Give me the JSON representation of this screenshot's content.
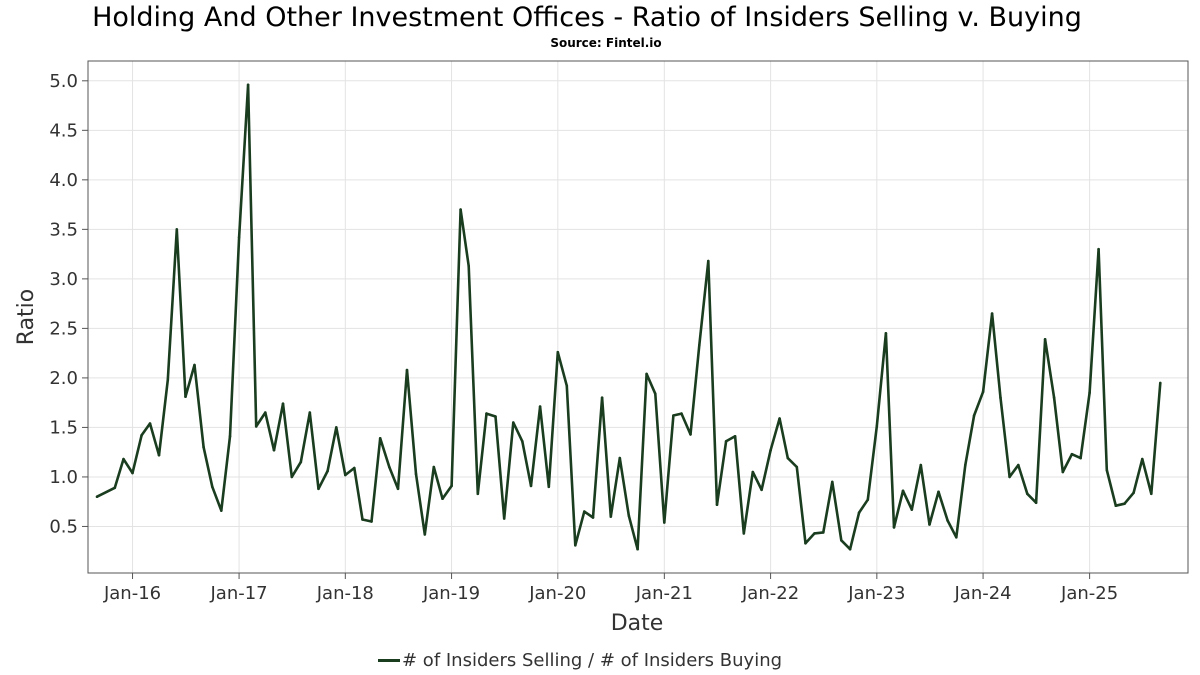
{
  "chart_data": {
    "type": "line",
    "title": "Holding And Other Investment Offices - Ratio of Insiders Selling v. Buying",
    "subtitle": "Source: Fintel.io",
    "xlabel": "Date",
    "ylabel": "Ratio",
    "x_ticks": [
      "Jan-16",
      "Jan-17",
      "Jan-18",
      "Jan-19",
      "Jan-20",
      "Jan-21",
      "Jan-22",
      "Jan-23",
      "Jan-24",
      "Jan-25"
    ],
    "y_ticks": [
      "0.5",
      "1.0",
      "1.5",
      "2.0",
      "2.5",
      "3.0",
      "3.5",
      "4.0",
      "4.5",
      "5.0"
    ],
    "xlim": [
      "2015-08-01",
      "2025-12-05"
    ],
    "ylim": [
      0.03,
      5.2
    ],
    "grid": true,
    "legend_position": "bottom-center",
    "series": [
      {
        "name": "# of Insiders Selling / # of Insiders Buying",
        "color": "#1a3d1f",
        "points": [
          [
            "2015-09-01",
            0.8
          ],
          [
            "2015-11-01",
            0.89
          ],
          [
            "2015-12-01",
            1.18
          ],
          [
            "2016-01-01",
            1.04
          ],
          [
            "2016-02-01",
            1.42
          ],
          [
            "2016-03-01",
            1.54
          ],
          [
            "2016-04-01",
            1.22
          ],
          [
            "2016-05-01",
            1.98
          ],
          [
            "2016-06-01",
            3.5
          ],
          [
            "2016-07-01",
            1.81
          ],
          [
            "2016-08-01",
            2.13
          ],
          [
            "2016-09-01",
            1.3
          ],
          [
            "2016-10-01",
            0.9
          ],
          [
            "2016-11-01",
            0.66
          ],
          [
            "2016-12-01",
            1.41
          ],
          [
            "2017-01-01",
            3.42
          ],
          [
            "2017-02-01",
            4.96
          ],
          [
            "2017-03-01",
            1.51
          ],
          [
            "2017-04-01",
            1.65
          ],
          [
            "2017-05-01",
            1.27
          ],
          [
            "2017-06-01",
            1.74
          ],
          [
            "2017-07-01",
            1.0
          ],
          [
            "2017-08-01",
            1.15
          ],
          [
            "2017-09-01",
            1.65
          ],
          [
            "2017-10-01",
            0.88
          ],
          [
            "2017-11-01",
            1.06
          ],
          [
            "2017-12-01",
            1.5
          ],
          [
            "2018-01-01",
            1.02
          ],
          [
            "2018-02-01",
            1.09
          ],
          [
            "2018-03-01",
            0.57
          ],
          [
            "2018-04-01",
            0.55
          ],
          [
            "2018-05-01",
            1.39
          ],
          [
            "2018-06-01",
            1.1
          ],
          [
            "2018-07-01",
            0.88
          ],
          [
            "2018-08-01",
            2.08
          ],
          [
            "2018-09-01",
            1.03
          ],
          [
            "2018-10-01",
            0.42
          ],
          [
            "2018-11-01",
            1.1
          ],
          [
            "2018-12-01",
            0.78
          ],
          [
            "2019-01-01",
            0.91
          ],
          [
            "2019-02-01",
            3.7
          ],
          [
            "2019-03-01",
            3.13
          ],
          [
            "2019-04-01",
            0.83
          ],
          [
            "2019-05-01",
            1.64
          ],
          [
            "2019-06-01",
            1.61
          ],
          [
            "2019-07-01",
            0.58
          ],
          [
            "2019-08-01",
            1.55
          ],
          [
            "2019-09-01",
            1.36
          ],
          [
            "2019-10-01",
            0.91
          ],
          [
            "2019-11-01",
            1.71
          ],
          [
            "2019-12-01",
            0.9
          ],
          [
            "2020-01-01",
            2.26
          ],
          [
            "2020-02-01",
            1.92
          ],
          [
            "2020-03-01",
            0.31
          ],
          [
            "2020-04-01",
            0.65
          ],
          [
            "2020-05-01",
            0.59
          ],
          [
            "2020-06-01",
            1.8
          ],
          [
            "2020-07-01",
            0.6
          ],
          [
            "2020-08-01",
            1.19
          ],
          [
            "2020-09-01",
            0.61
          ],
          [
            "2020-10-01",
            0.27
          ],
          [
            "2020-11-01",
            2.04
          ],
          [
            "2020-12-01",
            1.84
          ],
          [
            "2021-01-01",
            0.54
          ],
          [
            "2021-02-01",
            1.62
          ],
          [
            "2021-03-01",
            1.64
          ],
          [
            "2021-04-01",
            1.43
          ],
          [
            "2021-05-01",
            2.33
          ],
          [
            "2021-06-01",
            3.18
          ],
          [
            "2021-07-01",
            0.72
          ],
          [
            "2021-08-01",
            1.36
          ],
          [
            "2021-09-01",
            1.41
          ],
          [
            "2021-10-01",
            0.43
          ],
          [
            "2021-11-01",
            1.05
          ],
          [
            "2021-12-01",
            0.87
          ],
          [
            "2022-01-01",
            1.27
          ],
          [
            "2022-02-01",
            1.59
          ],
          [
            "2022-03-01",
            1.19
          ],
          [
            "2022-04-01",
            1.1
          ],
          [
            "2022-05-01",
            0.33
          ],
          [
            "2022-06-01",
            0.43
          ],
          [
            "2022-07-01",
            0.44
          ],
          [
            "2022-08-01",
            0.95
          ],
          [
            "2022-09-01",
            0.36
          ],
          [
            "2022-10-01",
            0.27
          ],
          [
            "2022-11-01",
            0.64
          ],
          [
            "2022-12-01",
            0.77
          ],
          [
            "2023-01-01",
            1.51
          ],
          [
            "2023-02-01",
            2.45
          ],
          [
            "2023-03-01",
            0.49
          ],
          [
            "2023-04-01",
            0.86
          ],
          [
            "2023-05-01",
            0.67
          ],
          [
            "2023-06-01",
            1.12
          ],
          [
            "2023-07-01",
            0.52
          ],
          [
            "2023-08-01",
            0.85
          ],
          [
            "2023-09-01",
            0.56
          ],
          [
            "2023-10-01",
            0.39
          ],
          [
            "2023-11-01",
            1.12
          ],
          [
            "2023-12-01",
            1.62
          ],
          [
            "2024-01-01",
            1.86
          ],
          [
            "2024-02-01",
            2.65
          ],
          [
            "2024-03-01",
            1.8
          ],
          [
            "2024-04-01",
            1.0
          ],
          [
            "2024-05-01",
            1.12
          ],
          [
            "2024-06-01",
            0.83
          ],
          [
            "2024-07-01",
            0.74
          ],
          [
            "2024-08-01",
            2.39
          ],
          [
            "2024-09-01",
            1.8
          ],
          [
            "2024-10-01",
            1.05
          ],
          [
            "2024-11-01",
            1.23
          ],
          [
            "2024-12-01",
            1.19
          ],
          [
            "2025-01-01",
            1.85
          ],
          [
            "2025-02-01",
            3.3
          ],
          [
            "2025-03-01",
            1.07
          ],
          [
            "2025-04-01",
            0.71
          ],
          [
            "2025-05-01",
            0.73
          ],
          [
            "2025-06-01",
            0.84
          ],
          [
            "2025-07-01",
            1.18
          ],
          [
            "2025-08-01",
            0.83
          ],
          [
            "2025-09-01",
            1.95
          ]
        ]
      }
    ]
  }
}
